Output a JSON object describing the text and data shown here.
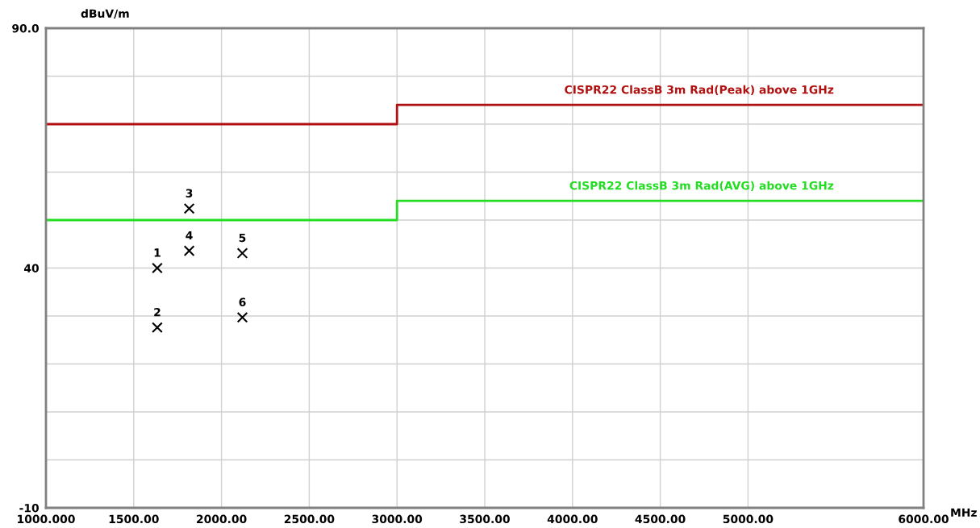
{
  "chart_data": {
    "type": "step",
    "xlabel": "MHz",
    "ylabel": "dBuV/m",
    "xlim": [
      1000,
      6000
    ],
    "ylim": [
      -10,
      90
    ],
    "xticks": [
      {
        "value": 1000,
        "label": "1000.000"
      },
      {
        "value": 1500,
        "label": "1500.00"
      },
      {
        "value": 2000,
        "label": "2000.00"
      },
      {
        "value": 2500,
        "label": "2500.00"
      },
      {
        "value": 3000,
        "label": "3000.00"
      },
      {
        "value": 3500,
        "label": "3500.00"
      },
      {
        "value": 4000,
        "label": "4000.00"
      },
      {
        "value": 4500,
        "label": "4500.00"
      },
      {
        "value": 5000,
        "label": "5000.00"
      },
      {
        "value": 6000,
        "label": "6000.00"
      }
    ],
    "yticks": [
      {
        "value": -10,
        "label": "-10"
      },
      {
        "value": 0,
        "label": null
      },
      {
        "value": 10,
        "label": null
      },
      {
        "value": 20,
        "label": null
      },
      {
        "value": 30,
        "label": null
      },
      {
        "value": 40,
        "label": "40"
      },
      {
        "value": 50,
        "label": null
      },
      {
        "value": 60,
        "label": null
      },
      {
        "value": 70,
        "label": null
      },
      {
        "value": 80,
        "label": null
      },
      {
        "value": 90,
        "label": "90.0"
      }
    ],
    "grid": true,
    "series": [
      {
        "name": "CISPR22 ClassB 3m Rad(Peak) above 1GHz",
        "color": "#b01010",
        "x": [
          1000,
          3000,
          6000
        ],
        "values": [
          70,
          74,
          74
        ]
      },
      {
        "name": "CISPR22 ClassB 3m Rad(AVG) above 1GHz",
        "color": "#22dd22",
        "x": [
          1000,
          3000,
          6000
        ],
        "values": [
          50,
          54,
          54
        ]
      },
      {
        "type": "scatter",
        "marker": "cross",
        "color": "#000000",
        "x": [
          1634,
          1634,
          1816,
          1816,
          2119,
          2119
        ],
        "values": [
          40.0,
          27.6,
          52.4,
          43.6,
          43.1,
          29.7
        ]
      }
    ],
    "annotations": [
      {
        "text": "1",
        "x": 1634,
        "y": 40.0
      },
      {
        "text": "2",
        "x": 1634,
        "y": 27.6
      },
      {
        "text": "3",
        "x": 1816,
        "y": 52.4
      },
      {
        "text": "4",
        "x": 1816,
        "y": 43.6
      },
      {
        "text": "5",
        "x": 2119,
        "y": 43.1
      },
      {
        "text": "6",
        "x": 2119,
        "y": 29.7
      }
    ]
  }
}
